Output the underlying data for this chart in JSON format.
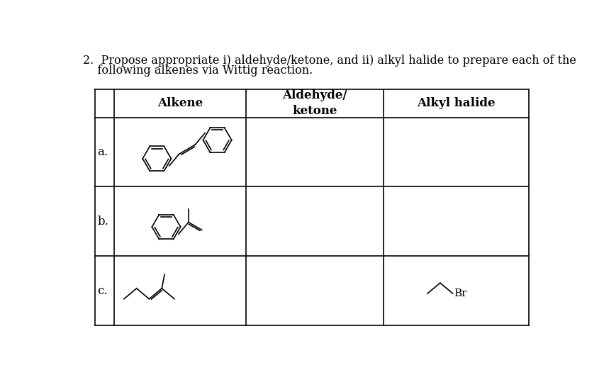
{
  "title_line1": "2.  Propose appropriate i) aldehyde/ketone, and ii) alkyl halide to prepare each of the",
  "title_line2": "    following alkenes via Wittig reaction.",
  "col_headers_1": "Alkene",
  "col_headers_2": "Aldehyde/\nketone",
  "col_headers_3": "Alkyl halide",
  "row_labels": [
    "a.",
    "b.",
    "c."
  ],
  "bg_color": "#ffffff",
  "text_color": "#000000",
  "line_color": "#000000",
  "font_size_title": 11.5,
  "font_size_header": 12,
  "font_size_label": 12
}
